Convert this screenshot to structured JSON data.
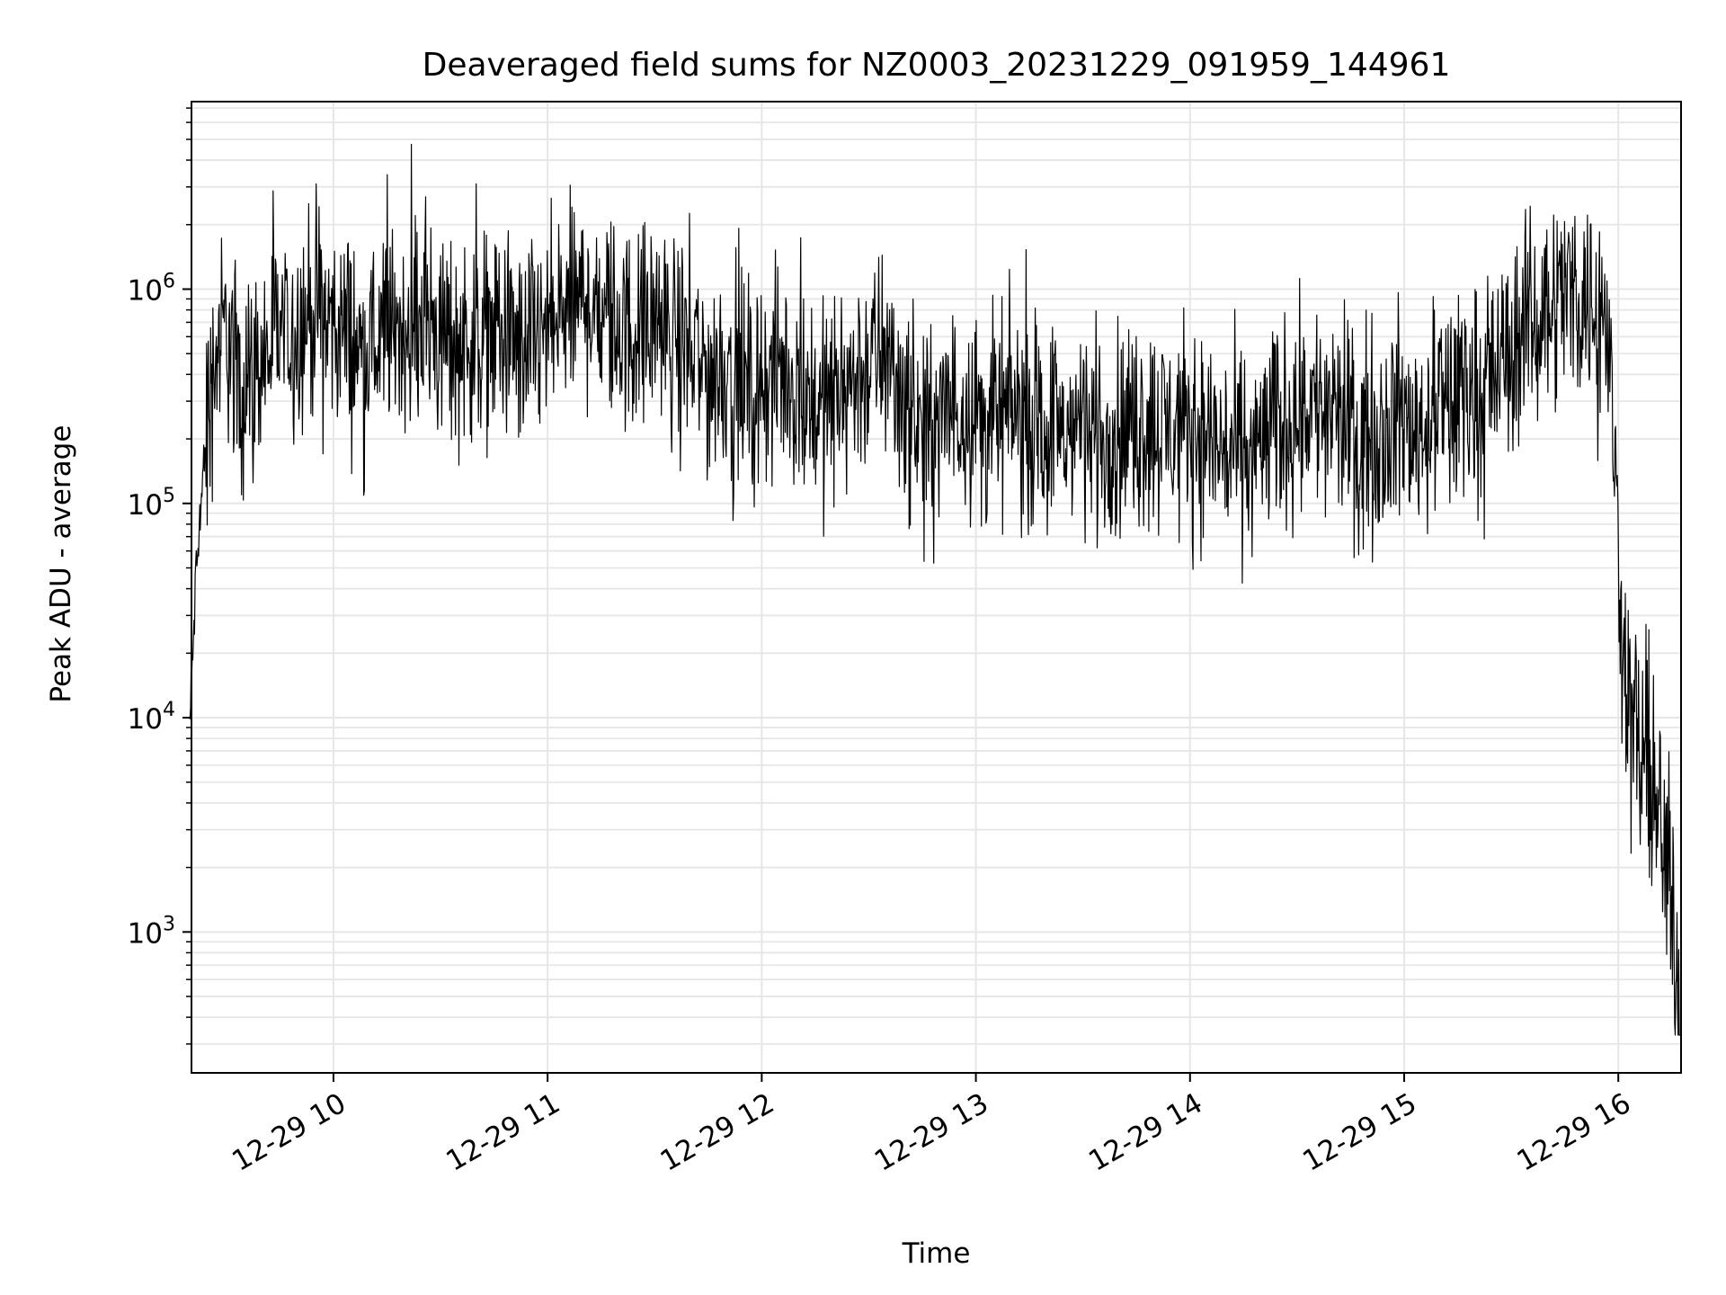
{
  "chart_data": {
    "type": "line",
    "title": "Deaveraged field sums for NZ0003_20231229_091959_144961",
    "xlabel": "Time",
    "ylabel": "Peak ADU - average",
    "yscale": "log",
    "ylim": [
      220,
      7500000
    ],
    "xlim_hours": [
      9.337,
      16.293
    ],
    "grid": true,
    "legend": "none",
    "line_color": "#000000",
    "grid_color": "#e6e6e6",
    "x_tick_labels": [
      "12-29 10",
      "12-29 11",
      "12-29 12",
      "12-29 13",
      "12-29 14",
      "12-29 15",
      "12-29 16"
    ],
    "x_tick_hours": [
      10,
      11,
      12,
      13,
      14,
      15,
      16
    ],
    "y_tick_labels": [
      {
        "base": "10",
        "exp": "3"
      },
      {
        "base": "10",
        "exp": "4"
      },
      {
        "base": "10",
        "exp": "5"
      },
      {
        "base": "10",
        "exp": "6"
      }
    ],
    "y_tick_values": [
      1000,
      10000,
      100000,
      1000000
    ],
    "series": [
      {
        "x": [
          9.33,
          9.36,
          9.4,
          9.45,
          9.5,
          9.55,
          9.6,
          9.65,
          9.7,
          9.75,
          9.8,
          9.85,
          9.9,
          9.95,
          10.0,
          10.05,
          10.1,
          10.15,
          10.2,
          10.25,
          10.3,
          10.35,
          10.4,
          10.45,
          10.5,
          10.55,
          10.6,
          10.65,
          10.7,
          10.75,
          10.8,
          10.85,
          10.9,
          10.95,
          11.0,
          11.05,
          11.1,
          11.15,
          11.2,
          11.25,
          11.3,
          11.35,
          11.4,
          11.45,
          11.5,
          11.55,
          11.6,
          11.65,
          11.7,
          11.75,
          11.8,
          11.85,
          11.9,
          11.95,
          12.0,
          12.05,
          12.1,
          12.15,
          12.2,
          12.25,
          12.3,
          12.35,
          12.4,
          12.45,
          12.5,
          12.55,
          12.6,
          12.65,
          12.7,
          12.75,
          12.8,
          12.85,
          12.9,
          12.95,
          13.0,
          13.05,
          13.1,
          13.15,
          13.2,
          13.25,
          13.3,
          13.35,
          13.4,
          13.45,
          13.5,
          13.55,
          13.6,
          13.65,
          13.7,
          13.75,
          13.8,
          13.85,
          13.9,
          13.95,
          14.0,
          14.05,
          14.1,
          14.15,
          14.2,
          14.25,
          14.3,
          14.35,
          14.4,
          14.45,
          14.5,
          14.55,
          14.6,
          14.65,
          14.7,
          14.75,
          14.8,
          14.85,
          14.9,
          14.95,
          15.0,
          15.05,
          15.1,
          15.15,
          15.2,
          15.25,
          15.3,
          15.35,
          15.4,
          15.45,
          15.5,
          15.55,
          15.6,
          15.65,
          15.7,
          15.75,
          15.8,
          15.85,
          15.9,
          15.95,
          15.98,
          16.0,
          16.03,
          16.06,
          16.09,
          16.12,
          16.15,
          16.18,
          16.21,
          16.24,
          16.27,
          16.29
        ],
        "y": [
          9500,
          50000,
          180000,
          500000,
          650000,
          400000,
          350000,
          420000,
          500000,
          650000,
          600000,
          700000,
          800000,
          750000,
          700000,
          650000,
          550000,
          480000,
          560000,
          600000,
          650000,
          700000,
          700000,
          650000,
          600000,
          550000,
          580000,
          600000,
          620000,
          640000,
          600000,
          500000,
          520000,
          580000,
          620000,
          700000,
          800000,
          850000,
          900000,
          820000,
          700000,
          650000,
          600000,
          650000,
          700000,
          620000,
          550000,
          500000,
          450000,
          400000,
          420000,
          450000,
          380000,
          320000,
          350000,
          380000,
          400000,
          370000,
          330000,
          300000,
          280000,
          320000,
          360000,
          400000,
          420000,
          500000,
          450000,
          350000,
          250000,
          200000,
          220000,
          250000,
          280000,
          300000,
          260000,
          240000,
          250000,
          270000,
          260000,
          240000,
          230000,
          220000,
          210000,
          230000,
          240000,
          220000,
          200000,
          210000,
          220000,
          230000,
          240000,
          230000,
          220000,
          250000,
          230000,
          210000,
          200000,
          180000,
          170000,
          160000,
          180000,
          200000,
          220000,
          250000,
          280000,
          300000,
          280000,
          260000,
          240000,
          220000,
          200000,
          210000,
          230000,
          250000,
          240000,
          220000,
          240000,
          260000,
          280000,
          300000,
          320000,
          350000,
          380000,
          420000,
          500000,
          600000,
          700000,
          800000,
          900000,
          1000000,
          950000,
          900000,
          800000,
          600000,
          200000,
          60000,
          20000,
          10000,
          7000,
          6000,
          5000,
          3500,
          2500,
          1500,
          800,
          500
        ]
      }
    ]
  }
}
